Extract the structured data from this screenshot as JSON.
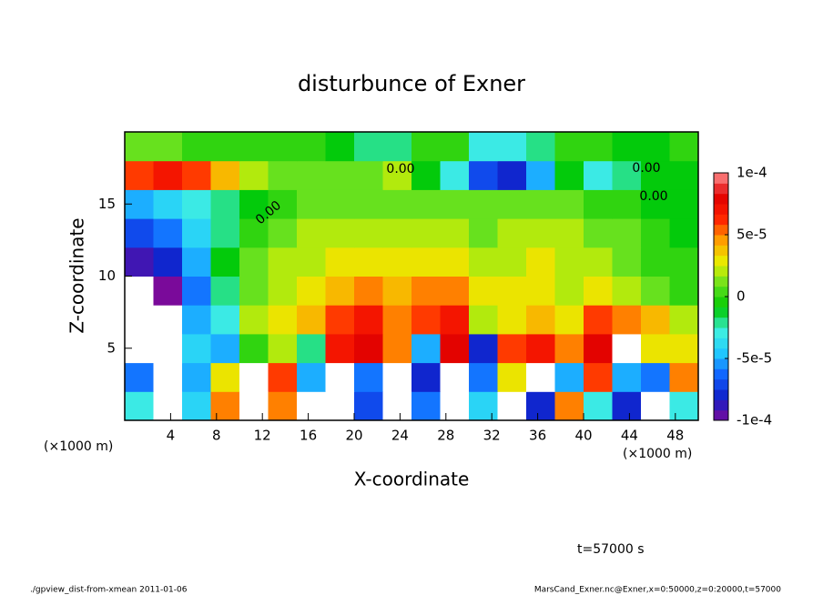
{
  "chart_data": {
    "type": "heatmap",
    "title": "disturbunce of Exner",
    "xlabel": "X-coordinate",
    "ylabel": "Z-coordinate",
    "x_unit": "(×1000 m)",
    "y_unit": "(×1000 m)",
    "annotation": "t=57000 s",
    "footer_left": "./gpview_dist-from-xmean  2011-01-06",
    "footer_right": "MarsCand_Exner.nc@Exner,x=0:50000,z=0:20000,t=57000",
    "contour_labels": [
      "0.00",
      "0.00",
      "0.00",
      "0.00"
    ],
    "xlim": [
      0,
      50
    ],
    "ylim": [
      0,
      20
    ],
    "xticks": [
      4,
      8,
      12,
      16,
      20,
      24,
      28,
      32,
      36,
      40,
      44,
      48
    ],
    "yticks": [
      5,
      10,
      15
    ],
    "x": [
      1.25,
      3.75,
      6.25,
      8.75,
      11.25,
      13.75,
      16.25,
      18.75,
      21.25,
      23.75,
      26.25,
      28.75,
      31.25,
      33.75,
      36.25,
      38.75,
      41.25,
      43.75,
      46.25,
      48.75
    ],
    "y": [
      1,
      3,
      5,
      7,
      9,
      11,
      13,
      15,
      17,
      19
    ],
    "z": [
      [
        -3e-05,
        -0.0002,
        -4e-05,
        5e-05,
        0.0002,
        5e-05,
        0.0002,
        0.0002,
        -7e-05,
        0.0002,
        -6e-05,
        0.0002,
        -4e-05,
        0.0002,
        -8e-05,
        5e-05,
        -3e-05,
        -8e-05,
        0.0002,
        -3e-05
      ],
      [
        -6e-05,
        -0.0002,
        -5e-05,
        3e-05,
        0.0002,
        6e-05,
        -5e-05,
        0.0002,
        -6e-05,
        0.0002,
        -8e-05,
        0.0002,
        -6e-05,
        3e-05,
        0.0002,
        -5e-05,
        6e-05,
        -5e-05,
        -6e-05,
        5e-05
      ],
      [
        -0.0002,
        -0.0002,
        -4e-05,
        -5e-05,
        0,
        2e-05,
        -2e-05,
        7e-05,
        8e-05,
        5e-05,
        -5e-05,
        8e-05,
        -8e-05,
        6e-05,
        7e-05,
        5e-05,
        8e-05,
        0.0002,
        3e-05,
        3e-05
      ],
      [
        -0.0002,
        -0.0002,
        -5e-05,
        -3e-05,
        2e-05,
        3e-05,
        4e-05,
        6e-05,
        7e-05,
        5e-05,
        6e-05,
        7e-05,
        2e-05,
        3e-05,
        4e-05,
        3e-05,
        6e-05,
        5e-05,
        4e-05,
        2e-05
      ],
      [
        -0.0002,
        -0.0001,
        -6e-05,
        -2e-05,
        1e-05,
        2e-05,
        3e-05,
        4e-05,
        5e-05,
        4e-05,
        5e-05,
        5e-05,
        3e-05,
        3e-05,
        3e-05,
        2e-05,
        3e-05,
        2e-05,
        1e-05,
        0
      ],
      [
        -9e-05,
        -8e-05,
        -5e-05,
        -1e-05,
        1e-05,
        2e-05,
        2e-05,
        3e-05,
        3e-05,
        3e-05,
        3e-05,
        3e-05,
        2e-05,
        2e-05,
        3e-05,
        2e-05,
        2e-05,
        1e-05,
        0,
        0
      ],
      [
        -7e-05,
        -6e-05,
        -4e-05,
        -2e-05,
        0,
        1e-05,
        2e-05,
        2e-05,
        2e-05,
        2e-05,
        2e-05,
        2e-05,
        1e-05,
        2e-05,
        2e-05,
        2e-05,
        1e-05,
        1e-05,
        0,
        -1e-05
      ],
      [
        -5e-05,
        -4e-05,
        -3e-05,
        -2e-05,
        -1e-05,
        0,
        1e-05,
        1e-05,
        1e-05,
        1e-05,
        1e-05,
        1e-05,
        1e-05,
        1e-05,
        1e-05,
        1e-05,
        0,
        0,
        -1e-05,
        -1e-05
      ],
      [
        6e-05,
        7e-05,
        6e-05,
        4e-05,
        2e-05,
        1e-05,
        1e-05,
        1e-05,
        1e-05,
        2e-05,
        -1e-05,
        -3e-05,
        -7e-05,
        -8e-05,
        -5e-05,
        -1e-05,
        -3e-05,
        -2e-05,
        -1e-05,
        -1e-05
      ],
      [
        1e-05,
        1e-05,
        0,
        0,
        0,
        0,
        0,
        -1e-05,
        -2e-05,
        -2e-05,
        0,
        0,
        -3e-05,
        -3e-05,
        -2e-05,
        0,
        0,
        -1e-05,
        -1e-05,
        0
      ]
    ],
    "clim": [
      -0.0001,
      0.0001
    ],
    "cticks": [
      {
        "value": 0.0001,
        "label": "1e-4"
      },
      {
        "value": 5e-05,
        "label": "5e-5"
      },
      0,
      {
        "value": -5e-05,
        "label": "-5e-5"
      },
      {
        "value": -0.0001,
        "label": "-1e-4"
      }
    ],
    "colors": [
      "#7a0a9a",
      "#1020c8",
      "#1060ff",
      "#20c8ff",
      "#40f0e0",
      "#00c800",
      "#60e020",
      "#e8f000",
      "#ffa000",
      "#ff2000",
      "#e00000",
      "#ff9090"
    ],
    "out_of_range_color": "#ffffff"
  }
}
